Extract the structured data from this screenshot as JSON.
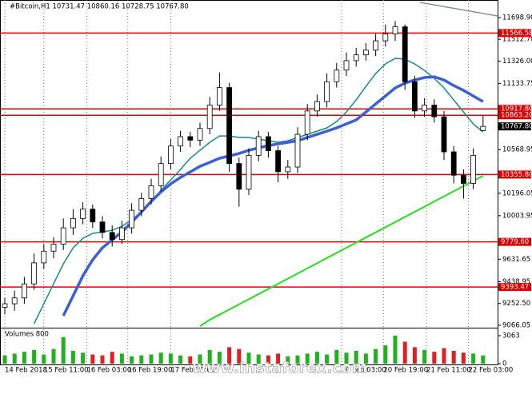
{
  "chart_data": {
    "type": "candlestick",
    "header": "#Bitcoin,H1  10731.47 10860.16 10728.75 10767.80",
    "watermark": "www.instaforex.com",
    "volume_title": "Volumes 800",
    "ylim": [
      9045.5,
      11849.3
    ],
    "yticks": [
      {
        "value": 11698.9,
        "label": "11698.90"
      },
      {
        "value": 11512.7,
        "label": "11512.70"
      },
      {
        "value": 11326,
        "label": "11326.00"
      },
      11133.75,
      {
        "value": 10568.95,
        "label": "10568.95"
      },
      10196.05,
      10003.95,
      9631.65,
      9438.95,
      {
        "value": 9252.5,
        "label": "9252.50"
      },
      9066.05
    ],
    "xticks": [
      {
        "value": 0,
        "label": "14 Feb 2018"
      },
      {
        "value": 4,
        "label": "15 Feb 11:00"
      },
      {
        "value": 8.4,
        "label": "16 Feb 03:00"
      },
      {
        "value": 12.6,
        "label": "16 Feb 19:00"
      },
      {
        "value": 17,
        "label": "17 Feb 11:00"
      },
      {
        "value": 34.5,
        "label": "20 Feb 03:00"
      },
      {
        "value": 38.8,
        "label": "20 Feb 19:00"
      },
      {
        "value": 43.2,
        "label": "21 Feb 11:00"
      },
      {
        "value": 47.5,
        "label": "22 Feb 03:00"
      }
    ],
    "levels": [
      11566.58,
      {
        "value": 10917.8,
        "label": "10917.80"
      },
      {
        "value": 10863.2,
        "label": "10863.20"
      },
      {
        "value": 10355.8,
        "label": "10355.80"
      },
      {
        "value": 9779.6,
        "label": "9779.60"
      },
      9393.47
    ],
    "level_color": "#e00000",
    "last_price": {
      "value": 10767.8,
      "label": "10767.80"
    },
    "open": [
      9220,
      9250,
      9300,
      9420,
      9600,
      9700,
      9760,
      9900,
      9980,
      10060,
      9950,
      9860,
      9800,
      9900,
      10050,
      10150,
      10260,
      10450,
      10600,
      10680,
      10650,
      10750,
      10950,
      11100,
      10450,
      10230,
      10520,
      10680,
      10560,
      10380,
      10420,
      10700,
      10900,
      10980,
      11150,
      11250,
      11330,
      11380,
      11420,
      11500,
      11560,
      11620,
      11150,
      10900,
      10950,
      10850,
      10550,
      10350,
      10280,
      10731.47
    ],
    "high": [
      9300,
      9360,
      9480,
      9680,
      9760,
      9820,
      9980,
      10060,
      10120,
      10100,
      10000,
      9920,
      9960,
      10110,
      10200,
      10320,
      10510,
      10660,
      10730,
      10720,
      10800,
      11020,
      11230,
      11140,
      10500,
      10580,
      10730,
      10720,
      10600,
      10480,
      10760,
      10960,
      11040,
      11220,
      11310,
      11400,
      11440,
      11480,
      11560,
      11640,
      11670,
      11640,
      11200,
      11010,
      11000,
      10900,
      10600,
      10400,
      10580,
      10860.16
    ],
    "low": [
      9160,
      9190,
      9250,
      9370,
      9550,
      9640,
      9710,
      9840,
      9930,
      9900,
      9810,
      9740,
      9760,
      9850,
      10000,
      10100,
      10210,
      10400,
      10550,
      10590,
      10600,
      10700,
      10900,
      10380,
      10080,
      10180,
      10470,
      10500,
      10290,
      10320,
      10370,
      10650,
      10850,
      10930,
      11100,
      11200,
      11280,
      11330,
      11370,
      11450,
      11500,
      11080,
      10840,
      10850,
      10800,
      10480,
      10280,
      10150,
      10230,
      10728.75
    ],
    "close": [
      9250,
      9300,
      9420,
      9600,
      9700,
      9760,
      9900,
      9980,
      10060,
      9950,
      9860,
      9800,
      9900,
      10050,
      10150,
      10260,
      10450,
      10600,
      10680,
      10650,
      10750,
      10950,
      11100,
      10450,
      10230,
      10520,
      10680,
      10560,
      10380,
      10420,
      10700,
      10900,
      10980,
      11150,
      11250,
      11330,
      11380,
      11420,
      11500,
      11560,
      11620,
      11150,
      10900,
      10950,
      10850,
      10550,
      10350,
      10280,
      10520,
      10767.8
    ],
    "series": [
      {
        "color": "#148a8a",
        "width": 1.5,
        "values": [
          null,
          null,
          null,
          9079,
          9250,
          9421,
          9592,
          9729,
          9811,
          9852,
          9865,
          9879,
          9913,
          9968,
          10036,
          10125,
          10221,
          10310,
          10399,
          10495,
          10563,
          10631,
          10686,
          10686,
          10673,
          10673,
          10659,
          10645,
          10631,
          10645,
          10673,
          10700,
          10727,
          10755,
          10809,
          10891,
          10994,
          11110,
          11220,
          11302,
          11350,
          11343,
          11302,
          11247,
          11179,
          11097,
          10994,
          10891,
          10789,
          10720
        ]
      },
      {
        "color": "#3c5fd8",
        "width": 3.5,
        "values": [
          null,
          null,
          null,
          null,
          null,
          null,
          9147,
          9318,
          9489,
          9626,
          9729,
          9797,
          9865,
          9947,
          10036,
          10125,
          10207,
          10276,
          10331,
          10378,
          10426,
          10460,
          10495,
          10515,
          10536,
          10563,
          10584,
          10604,
          10618,
          10631,
          10645,
          10673,
          10700,
          10727,
          10755,
          10789,
          10823,
          10891,
          10960,
          11028,
          11097,
          11138,
          11165,
          11186,
          11192,
          11165,
          11117,
          11076,
          11028,
          10980
        ]
      },
      {
        "color": "#22e01c",
        "width": 2,
        "values": [
          null,
          null,
          null,
          null,
          null,
          null,
          null,
          null,
          null,
          null,
          null,
          null,
          null,
          null,
          null,
          null,
          null,
          null,
          null,
          null,
          9058,
          9113,
          9157,
          9201,
          9245,
          9289,
          9333,
          9377,
          9421,
          9465,
          9509,
          9553,
          9597,
          9641,
          9685,
          9729,
          9773,
          9817,
          9861,
          9905,
          9949,
          9993,
          10037,
          10081,
          10125,
          10169,
          10213,
          10257,
          10301,
          10345
        ]
      }
    ],
    "volumes": [
      900,
      1100,
      1300,
      1500,
      1000,
      1600,
      2900,
      1400,
      1200,
      1000,
      900,
      1300,
      1100,
      800,
      900,
      1000,
      1200,
      1100,
      900,
      800,
      1000,
      1500,
      1300,
      1800,
      1600,
      1200,
      1000,
      900,
      1100,
      800,
      900,
      1100,
      1300,
      1000,
      1500,
      1200,
      1400,
      1100,
      1600,
      2000,
      3063,
      2400,
      1800,
      1500,
      1300,
      1700,
      1400,
      1200,
      1100,
      900
    ],
    "volume_ylim": [
      0,
      3063
    ],
    "volume_yticks": [
      3063,
      0
    ],
    "up_color": "#22b020",
    "down_color": "#e02020"
  }
}
